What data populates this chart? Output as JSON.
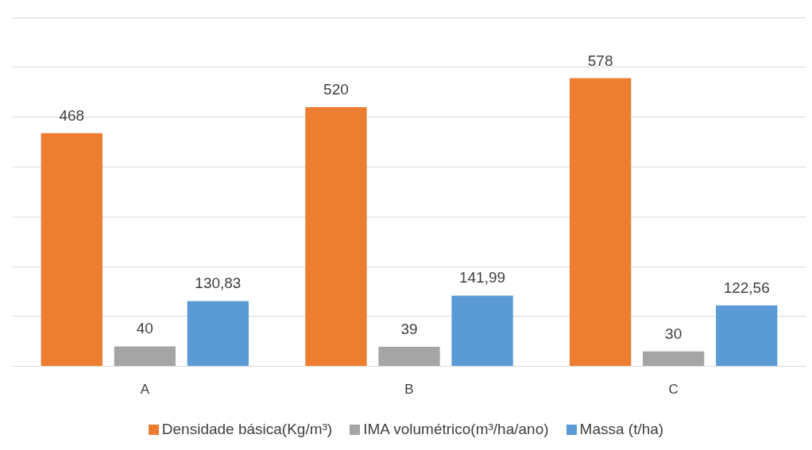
{
  "chart_data": {
    "type": "bar",
    "categories": [
      "A",
      "B",
      "C"
    ],
    "series": [
      {
        "name": "Densidade básica(Kg/m³)",
        "color": "#ed7d31",
        "values": [
          468,
          520,
          578
        ],
        "value_labels": [
          "468",
          "520",
          "578"
        ]
      },
      {
        "name": "IMA volumétrico(m³/ha/ano)",
        "color": "#a5a5a5",
        "values": [
          40,
          39,
          30
        ],
        "value_labels": [
          "40",
          "39",
          "30"
        ]
      },
      {
        "name": "Massa (t/ha)",
        "color": "#5b9bd5",
        "values": [
          130.83,
          141.99,
          122.56
        ],
        "value_labels": [
          "130,83",
          "141,99",
          "122,56"
        ]
      }
    ],
    "grid": "y",
    "legend": "bottom",
    "tick_labels": "x"
  }
}
